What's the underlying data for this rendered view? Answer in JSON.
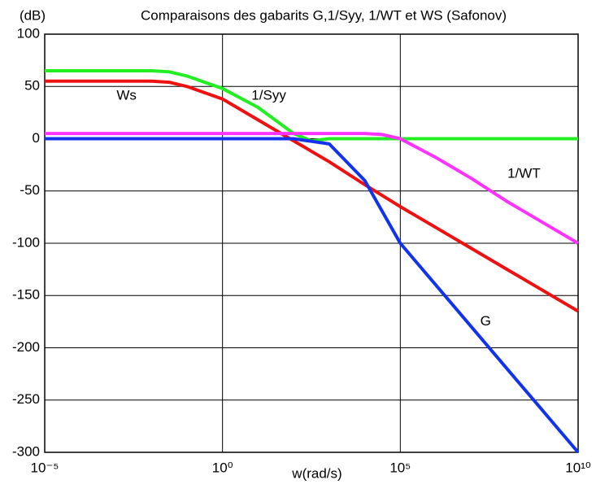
{
  "chart_data": {
    "type": "line",
    "title": "Comparaisons des gabarits G,1/Syy, 1/WT et WS (Safonov)",
    "xlabel": "w(rad/s)",
    "ylabel": "(dB)",
    "xscale": "log",
    "grid": true,
    "xlim": [
      1e-05,
      10000000000
    ],
    "ylim": [
      -300,
      100
    ],
    "xticks": [
      {
        "value": 1e-05,
        "label": "10⁻⁵"
      },
      {
        "value": 1,
        "label": "10⁰"
      },
      {
        "value": 100000,
        "label": "10⁵"
      },
      {
        "value": 10000000000,
        "label": "10¹⁰"
      }
    ],
    "yticks": [
      -300,
      -250,
      -200,
      -150,
      -100,
      -50,
      0,
      50,
      100
    ],
    "annotations": [
      {
        "text": "Ws",
        "x": 0.002,
        "y": 41
      },
      {
        "text": "1/Syy",
        "x": 20,
        "y": 41
      },
      {
        "text": "1/WT",
        "x": 300000000,
        "y": -34
      },
      {
        "text": "G",
        "x": 25000000,
        "y": -175
      }
    ],
    "series": [
      {
        "name": "1/Syy",
        "color": "#22ee22",
        "x": [
          1e-05,
          0.01,
          0.0316,
          0.1,
          1,
          10,
          100,
          316,
          1000,
          10000000000
        ],
        "values": [
          65,
          65,
          64,
          60,
          48,
          30,
          5,
          -2,
          0,
          0
        ]
      },
      {
        "name": "Ws",
        "color": "#ee1111",
        "x": [
          1e-05,
          0.01,
          0.0316,
          0.1,
          1,
          10,
          100,
          1000,
          10000,
          100000,
          1000000,
          10000000,
          100000000,
          1000000000,
          10000000000
        ],
        "values": [
          55,
          55,
          54,
          50,
          38,
          18,
          -2,
          -22,
          -44,
          -65,
          -85,
          -105,
          -125,
          -145,
          -165
        ]
      },
      {
        "name": "1/WT",
        "color": "#ff33ff",
        "x": [
          1e-05,
          10000,
          31600,
          100000,
          1000000,
          10000000,
          100000000,
          1000000000,
          10000000000
        ],
        "values": [
          5,
          5,
          4,
          0,
          -18,
          -38,
          -60,
          -80,
          -100
        ]
      },
      {
        "name": "G",
        "color": "#1133ee",
        "x": [
          1e-05,
          100,
          1000,
          10000,
          100000,
          1000000,
          10000000,
          100000000,
          1000000000,
          10000000000
        ],
        "values": [
          0,
          0,
          -5,
          -40,
          -100,
          -140,
          -180,
          -220,
          -260,
          -300
        ]
      }
    ]
  }
}
